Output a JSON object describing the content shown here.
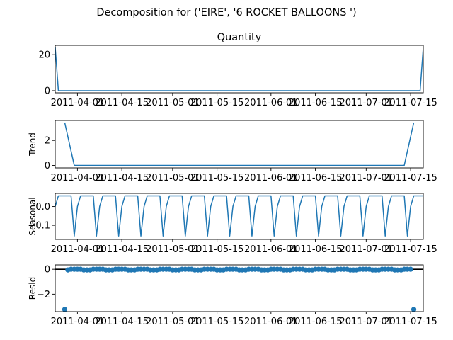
{
  "figure": {
    "suptitle": "Decomposition for ('EIRE', '6 ROCKET BALLOONS ')"
  },
  "colors": {
    "series": "#1f77b4",
    "zero_line": "#000000",
    "axes": "#000000"
  },
  "chart_data": [
    {
      "type": "line",
      "title": "Quantity",
      "ylabel": "",
      "xlim": [
        "2011-03-25",
        "2011-07-19"
      ],
      "ylim": [
        -1.2,
        25.2
      ],
      "yticks": [
        0,
        20
      ],
      "xticks": [
        "2011-04-01",
        "2011-04-15",
        "2011-05-01",
        "2011-05-15",
        "2011-06-01",
        "2011-06-15",
        "2011-07-01",
        "2011-07-15"
      ],
      "series": [
        {
          "points": [
            [
              "2011-03-25",
              24
            ],
            [
              "2011-03-26",
              0
            ],
            [
              "2011-07-18",
              0
            ],
            [
              "2011-07-19",
              24
            ]
          ]
        }
      ]
    },
    {
      "type": "line",
      "title": "",
      "ylabel": "Trend",
      "xlim": [
        "2011-03-25",
        "2011-07-19"
      ],
      "ylim": [
        -0.2,
        3.6
      ],
      "yticks": [
        0,
        2
      ],
      "xticks": [
        "2011-04-01",
        "2011-04-15",
        "2011-05-01",
        "2011-05-15",
        "2011-06-01",
        "2011-06-15",
        "2011-07-01",
        "2011-07-15"
      ],
      "series": [
        {
          "points": [
            [
              "2011-03-28",
              3.43
            ],
            [
              "2011-03-31",
              0
            ],
            [
              "2011-07-13",
              0
            ],
            [
              "2011-07-16",
              3.43
            ]
          ]
        }
      ]
    },
    {
      "type": "line",
      "title": "",
      "ylabel": "Seasonal",
      "xlim": [
        "2011-03-25",
        "2011-07-19"
      ],
      "ylim": [
        -0.175,
        0.07
      ],
      "yticks": [
        0.0,
        -0.1
      ],
      "ytick_labels": [
        "0.0",
        "−0.1"
      ],
      "xticks": [
        "2011-04-01",
        "2011-04-15",
        "2011-05-01",
        "2011-05-15",
        "2011-06-01",
        "2011-06-15",
        "2011-07-01",
        "2011-07-15"
      ],
      "series": [
        {
          "weekly_pattern": [
            0.0,
            0.057,
            0.057,
            0.057,
            0.057,
            0.057,
            -0.157
          ],
          "start": "2011-03-25",
          "end": "2011-07-19"
        }
      ]
    },
    {
      "type": "scatter",
      "title": "",
      "ylabel": "Resid",
      "xlim": [
        "2011-03-25",
        "2011-07-19"
      ],
      "ylim": [
        -3.4,
        0.35
      ],
      "yticks": [
        0,
        -2
      ],
      "ytick_labels": [
        "0",
        "−2"
      ],
      "zero_line": true,
      "xticks": [
        "2011-04-01",
        "2011-04-15",
        "2011-05-01",
        "2011-05-15",
        "2011-06-01",
        "2011-06-15",
        "2011-07-01",
        "2011-07-15"
      ],
      "series": [
        {
          "start": "2011-03-29",
          "end": "2011-07-15",
          "outliers": [
            [
              "2011-03-28",
              -3.22
            ],
            [
              "2011-07-16",
              -3.22
            ]
          ],
          "typical": [
            -0.057,
            0.0,
            0.0,
            0.0,
            0.0,
            -0.057,
            -0.057
          ]
        }
      ]
    }
  ]
}
